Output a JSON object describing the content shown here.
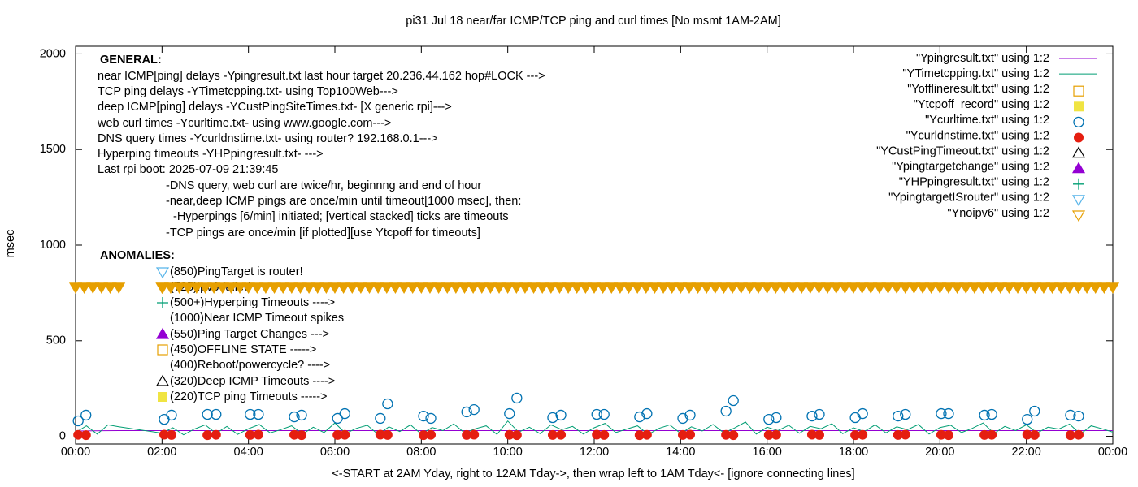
{
  "chart_data": {
    "type": "line",
    "title": "pi31 Jul 18  near/far ICMP/TCP ping and curl times [No msmt 1AM-2AM]",
    "x_label": "<-START at 2AM Yday, right to 12AM Tday->, then wrap left to 1AM Tday<- [ignore connecting lines]",
    "y_label": "msec",
    "xlim": [
      0,
      24
    ],
    "xticks": [
      {
        "value": 0,
        "label": "00:00"
      },
      {
        "value": 2,
        "label": "02:00"
      },
      {
        "value": 4,
        "label": "04:00"
      },
      {
        "value": 6,
        "label": "06:00"
      },
      {
        "value": 8,
        "label": "08:00"
      },
      {
        "value": 10,
        "label": "10:00"
      },
      {
        "value": 12,
        "label": "12:00"
      },
      {
        "value": 14,
        "label": "14:00"
      },
      {
        "value": 16,
        "label": "16:00"
      },
      {
        "value": 18,
        "label": "18:00"
      },
      {
        "value": 20,
        "label": "20:00"
      },
      {
        "value": 22,
        "label": "22:00"
      },
      {
        "value": 24,
        "label": "00:00"
      }
    ],
    "ylim": [
      -40,
      2040
    ],
    "yticks": [
      0,
      500,
      1000,
      1500,
      2000
    ],
    "grid": false,
    "legend": "top-right",
    "general_title": "GENERAL:",
    "general_lines": [
      "near ICMP[ping] delays -Ypingresult.txt last hour target 20.236.44.162 hop#LOCK --->",
      "TCP ping delays -YTimetcpping.txt- using Top100Web--->",
      "deep ICMP[ping] delays -YCustPingSiteTimes.txt- [X generic rpi]--->",
      "web curl times -Ycurltime.txt- using www.google.com--->",
      "DNS query times -Ycurldnstime.txt- using router? 192.168.0.1--->",
      "Hyperping timeouts -YHPpingresult.txt- --->",
      "Last rpi boot: 2025-07-09 21:39:45",
      "-DNS query, web curl are twice/hr, beginnng and end of hour",
      "-near,deep ICMP pings are once/min until timeout[1000 msec], then:",
      "-Hyperpings [6/min] initiated; [vertical stacked] ticks are timeouts",
      "-TCP pings are once/min [if plotted][use Ytcpoff for timeouts]"
    ],
    "anomalies_title": "ANOMALIES:",
    "anomalies": [
      "(850)PingTarget is router!",
      "(725)ipv6 failed",
      "(500+)Hyperping Timeouts ---->",
      "(1000)Near ICMP Timeout spikes",
      "(550)Ping Target Changes --->",
      "(450)OFFLINE STATE ----->",
      "(400)Reboot/powercycle? ---->",
      "(320)Deep ICMP Timeouts ---->",
      "(220)TCP ping Timeouts ----->"
    ],
    "series": [
      {
        "name": "\"Ypingresult.txt\" using 1:2",
        "style": "line",
        "color": "#9400d3",
        "x": [
          0,
          1,
          2,
          24
        ],
        "values": [
          28,
          30,
          30,
          30
        ]
      },
      {
        "name": "\"YTimetcpping.txt\" using 1:2",
        "style": "line",
        "color": "#009e73",
        "x": [
          0,
          0.25,
          0.5,
          0.75,
          1,
          2,
          2.25,
          2.5,
          2.75,
          3,
          3.25,
          3.5,
          3.75,
          4,
          4.25,
          4.5,
          4.75,
          5,
          5.25,
          5.5,
          5.75,
          6,
          6.25,
          6.5,
          6.75,
          7,
          7.25,
          7.5,
          7.75,
          8,
          8.25,
          8.5,
          8.75,
          9,
          9.25,
          9.5,
          9.75,
          10,
          10.25,
          10.5,
          10.75,
          11,
          11.25,
          11.5,
          11.75,
          12,
          12.25,
          12.5,
          12.75,
          13,
          13.25,
          13.5,
          13.75,
          14,
          14.25,
          14.5,
          14.75,
          15,
          15.25,
          15.5,
          15.75,
          16,
          16.25,
          16.5,
          16.75,
          17,
          17.25,
          17.5,
          17.75,
          18,
          18.25,
          18.5,
          18.75,
          19,
          19.25,
          19.5,
          19.75,
          20,
          20.25,
          20.5,
          20.75,
          21,
          21.25,
          21.5,
          21.75,
          22,
          22.25,
          22.5,
          22.75,
          23,
          23.25,
          23.5,
          23.75,
          24
        ],
        "values": [
          20,
          55,
          12,
          60,
          50,
          17,
          45,
          8,
          38,
          60,
          15,
          52,
          10,
          40,
          62,
          18,
          35,
          55,
          12,
          48,
          20,
          70,
          15,
          42,
          58,
          10,
          50,
          25,
          60,
          12,
          46,
          30,
          65,
          18,
          40,
          55,
          10,
          80,
          22,
          48,
          14,
          60,
          35,
          52,
          12,
          45,
          68,
          20,
          38,
          55,
          10,
          42,
          60,
          15,
          50,
          28,
          62,
          18,
          44,
          75,
          12,
          48,
          30,
          58,
          16,
          52,
          40,
          66,
          14,
          45,
          25,
          60,
          18,
          50,
          35,
          62,
          12,
          46,
          58,
          20,
          42,
          70,
          15,
          52,
          30,
          60,
          18,
          48,
          38,
          64,
          12,
          55,
          40,
          22
        ]
      },
      {
        "name": "\"Yofflineresult.txt\" using 1:2",
        "style": "square-open",
        "color": "#e69f00",
        "x": [],
        "values": []
      },
      {
        "name": "\"Ytcpoff_record\" using 1:2",
        "style": "square-filled",
        "color": "#f0e442",
        "x": [],
        "values": []
      },
      {
        "name": "\"Ycurltime.txt\" using 1:2",
        "style": "circle-open",
        "color": "#0072b2",
        "x": [
          0.06,
          0.24,
          2.05,
          2.22,
          3.05,
          3.25,
          4.04,
          4.23,
          5.06,
          5.23,
          6.06,
          6.23,
          7.05,
          7.22,
          8.05,
          8.22,
          9.05,
          9.22,
          10.04,
          10.21,
          11.04,
          11.23,
          12.06,
          12.23,
          13.05,
          13.22,
          14.05,
          14.22,
          15.05,
          15.22,
          16.04,
          16.21,
          17.04,
          17.21,
          18.04,
          18.21,
          19.03,
          19.2,
          20.03,
          20.2,
          21.03,
          21.2,
          22.02,
          22.19,
          23.02,
          23.21
        ],
        "values": [
          81,
          111,
          89,
          111,
          115,
          115,
          115,
          115,
          102,
          111,
          94,
          119,
          94,
          170,
          106,
          94,
          128,
          140,
          119,
          200,
          98,
          111,
          115,
          115,
          102,
          119,
          94,
          111,
          132,
          187,
          89,
          98,
          106,
          115,
          98,
          119,
          106,
          115,
          119,
          119,
          111,
          115,
          89,
          132,
          111,
          106
        ]
      },
      {
        "name": "\"Ycurldnstime.txt\" using 1:2",
        "style": "circle-filled",
        "color": "#e51e10",
        "x": [
          0.06,
          0.24,
          2.05,
          2.22,
          3.05,
          3.25,
          4.04,
          4.23,
          5.06,
          5.23,
          6.06,
          6.23,
          7.05,
          7.22,
          8.05,
          8.22,
          9.05,
          9.22,
          10.04,
          10.21,
          11.04,
          11.23,
          12.06,
          12.23,
          13.05,
          13.22,
          14.05,
          14.22,
          15.05,
          15.22,
          16.04,
          16.21,
          17.04,
          17.21,
          18.04,
          18.21,
          19.03,
          19.2,
          20.03,
          20.2,
          21.03,
          21.2,
          22.02,
          22.19,
          23.02,
          23.21
        ],
        "values": [
          8,
          6,
          9,
          7,
          6,
          8,
          7,
          9,
          8,
          6,
          7,
          8,
          9,
          7,
          6,
          8,
          7,
          9,
          8,
          6,
          7,
          8,
          9,
          7,
          6,
          8,
          7,
          9,
          8,
          6,
          7,
          8,
          9,
          7,
          6,
          8,
          7,
          9,
          8,
          6,
          7,
          8,
          9,
          7,
          6,
          8
        ]
      },
      {
        "name": "\"YCustPingTimeout.txt\" using 1:2",
        "style": "tri-up-open",
        "color": "#000000",
        "x": [],
        "values": []
      },
      {
        "name": "\"Ypingtargetchange\" using 1:2",
        "style": "tri-up-filled",
        "color": "#9400d3",
        "x": [],
        "values": []
      },
      {
        "name": "\"YHPpingresult.txt\" using 1:2",
        "style": "plus",
        "color": "#009e73",
        "x": [],
        "values": []
      },
      {
        "name": "\"YpingtargetISrouter\" using 1:2",
        "style": "tri-down-open",
        "color": "#56b4e9",
        "x": [],
        "values": []
      },
      {
        "name": "\"Ynoipv6\" using 1:2",
        "style": "tri-down-band",
        "color": "#e69f00",
        "x": [
          0,
          0.2,
          0.4,
          0.6,
          0.8,
          1,
          2,
          2.2,
          2.4,
          2.6,
          2.8,
          3,
          3.2,
          3.4,
          3.6,
          3.8,
          4,
          4.2,
          4.4,
          4.6,
          4.8,
          5,
          5.2,
          5.4,
          5.6,
          5.8,
          6,
          6.2,
          6.4,
          6.6,
          6.8,
          7,
          7.2,
          7.4,
          7.6,
          7.8,
          8,
          8.2,
          8.4,
          8.6,
          8.8,
          9,
          9.2,
          9.4,
          9.6,
          9.8,
          10,
          10.2,
          10.4,
          10.6,
          10.8,
          11,
          11.2,
          11.4,
          11.6,
          11.8,
          12,
          12.2,
          12.4,
          12.6,
          12.8,
          13,
          13.2,
          13.4,
          13.6,
          13.8,
          14,
          14.2,
          14.4,
          14.6,
          14.8,
          15,
          15.2,
          15.4,
          15.6,
          15.8,
          16,
          16.2,
          16.4,
          16.6,
          16.8,
          17,
          17.2,
          17.4,
          17.6,
          17.8,
          18,
          18.2,
          18.4,
          18.6,
          18.8,
          19,
          19.2,
          19.4,
          19.6,
          19.8,
          20,
          20.2,
          20.4,
          20.6,
          20.8,
          21,
          21.2,
          21.4,
          21.6,
          21.8,
          22,
          22.2,
          22.4,
          22.6,
          22.8,
          23,
          23.2,
          23.4,
          23.6,
          23.8,
          24
        ],
        "values": [
          780,
          780,
          780,
          780,
          780,
          780,
          780,
          780,
          780,
          780,
          780,
          780,
          780,
          780,
          780,
          780,
          780,
          780,
          780,
          780,
          780,
          780,
          780,
          780,
          780,
          780,
          780,
          780,
          780,
          780,
          780,
          780,
          780,
          780,
          780,
          780,
          780,
          780,
          780,
          780,
          780,
          780,
          780,
          780,
          780,
          780,
          780,
          780,
          780,
          780,
          780,
          780,
          780,
          780,
          780,
          780,
          780,
          780,
          780,
          780,
          780,
          780,
          780,
          780,
          780,
          780,
          780,
          780,
          780,
          780,
          780,
          780,
          780,
          780,
          780,
          780,
          780,
          780,
          780,
          780,
          780,
          780,
          780,
          780,
          780,
          780,
          780,
          780,
          780,
          780,
          780,
          780,
          780,
          780,
          780,
          780,
          780,
          780,
          780,
          780,
          780,
          780,
          780,
          780,
          780,
          780,
          780,
          780,
          780,
          780,
          780,
          780,
          780,
          780,
          780,
          780,
          780
        ]
      }
    ]
  }
}
